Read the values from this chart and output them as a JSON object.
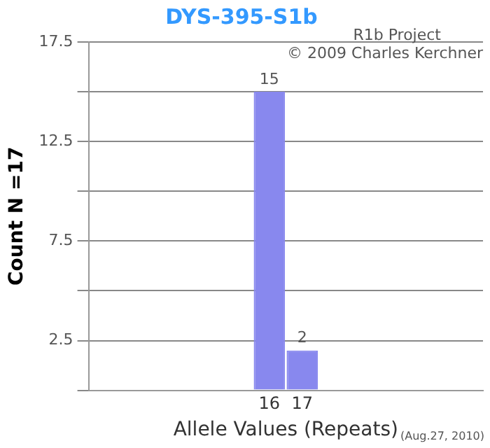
{
  "chart_data": {
    "type": "bar",
    "title": "DYS-395-S1b",
    "xlabel": "Allele Values (Repeats)",
    "ylabel": "Count N =17",
    "categories": [
      null,
      null,
      null,
      null,
      null,
      "16",
      "17",
      null,
      null,
      null,
      null,
      null
    ],
    "values": [
      null,
      null,
      null,
      null,
      null,
      15,
      2,
      null,
      null,
      null,
      null,
      null
    ],
    "color": "#8888ee",
    "data_labels": true,
    "grid": "y",
    "legend": false,
    "ylim": [
      0,
      17.5
    ],
    "yticks": [
      {
        "value": 0,
        "label": null
      },
      2.5,
      {
        "value": 5,
        "label": null
      },
      7.5,
      {
        "value": 10,
        "label": null
      },
      12.5,
      {
        "value": 15,
        "label": null
      },
      17.5
    ],
    "annotations": [
      "R1b Project",
      "© 2009 Charles Kerchner",
      "(Aug.27, 2010)"
    ]
  }
}
